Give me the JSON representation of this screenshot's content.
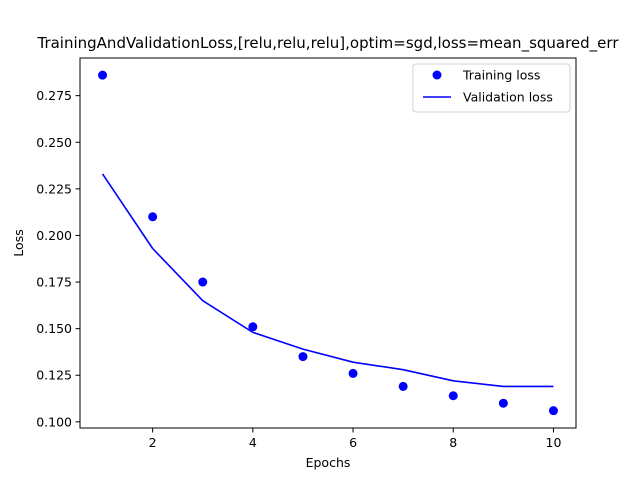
{
  "chart_data": {
    "type": "line",
    "title": "TrainingAndValidationLoss,[relu,relu,relu],optim=sgd,loss=mean_squared_err",
    "xlabel": "Epochs",
    "ylabel": "Loss",
    "xlim": [
      0.55,
      10.45
    ],
    "ylim": [
      0.0967,
      0.2952
    ],
    "xticks": [
      2,
      4,
      6,
      8,
      10
    ],
    "xtick_labels": [
      "2",
      "4",
      "6",
      "8",
      "10"
    ],
    "yticks": [
      0.1,
      0.125,
      0.15,
      0.175,
      0.2,
      0.225,
      0.25,
      0.275
    ],
    "ytick_labels": [
      "0.100",
      "0.125",
      "0.150",
      "0.175",
      "0.200",
      "0.225",
      "0.250",
      "0.275"
    ],
    "grid": false,
    "legend_position": "top-right",
    "x": [
      1,
      2,
      3,
      4,
      5,
      6,
      7,
      8,
      9,
      10
    ],
    "series": [
      {
        "name": "Training loss",
        "style": "markers",
        "color": "#0000ff",
        "values": [
          0.286,
          0.21,
          0.175,
          0.151,
          0.135,
          0.126,
          0.119,
          0.114,
          0.11,
          0.106
        ]
      },
      {
        "name": "Validation loss",
        "style": "line",
        "color": "#0000ff",
        "values": [
          0.233,
          0.193,
          0.165,
          0.148,
          0.139,
          0.132,
          0.128,
          0.122,
          0.119,
          0.119
        ]
      }
    ]
  }
}
